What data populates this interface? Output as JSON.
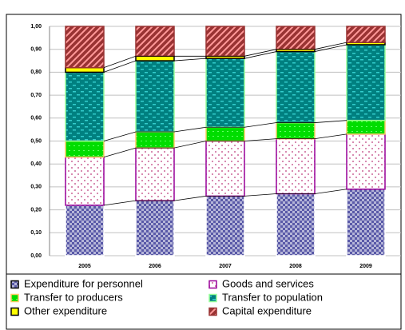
{
  "chart_data": {
    "type": "stacked_bar",
    "categories": [
      "2005",
      "2006",
      "2007",
      "2008",
      "2009"
    ],
    "series": [
      {
        "name": "Expenditure for personnel",
        "color": "#5a5aa8",
        "values": [
          0.22,
          0.24,
          0.26,
          0.27,
          0.29
        ]
      },
      {
        "name": "Goods and services",
        "color": "#990099",
        "values": [
          0.21,
          0.23,
          0.24,
          0.24,
          0.24
        ]
      },
      {
        "name": "Transfer to producers",
        "color": "#00dd00",
        "values": [
          0.07,
          0.07,
          0.06,
          0.07,
          0.06
        ]
      },
      {
        "name": "Transfer to population",
        "color": "#008080",
        "values": [
          0.3,
          0.31,
          0.3,
          0.31,
          0.33
        ]
      },
      {
        "name": "Other expenditure",
        "color": "#ffff00",
        "values": [
          0.02,
          0.02,
          0.01,
          0.01,
          0.01
        ]
      },
      {
        "name": "Capital expenditure",
        "color": "#993333",
        "values": [
          0.18,
          0.13,
          0.13,
          0.1,
          0.07
        ]
      }
    ],
    "ylim": [
      0,
      1
    ],
    "yticks": [
      {
        "value": 0,
        "label": "0,00"
      },
      {
        "value": 0.1,
        "label": "0,10"
      },
      {
        "value": 0.2,
        "label": "0,20"
      },
      {
        "value": 0.3,
        "label": "0,30"
      },
      {
        "value": 0.4,
        "label": "0,40"
      },
      {
        "value": 0.5,
        "label": "0,50"
      },
      {
        "value": 0.6,
        "label": "0,60"
      },
      {
        "value": 0.7,
        "label": "0,70"
      },
      {
        "value": 0.8,
        "label": "0,80"
      },
      {
        "value": 0.9,
        "label": "0,90"
      },
      {
        "value": 1,
        "label": "1,00"
      }
    ],
    "grid": true
  }
}
